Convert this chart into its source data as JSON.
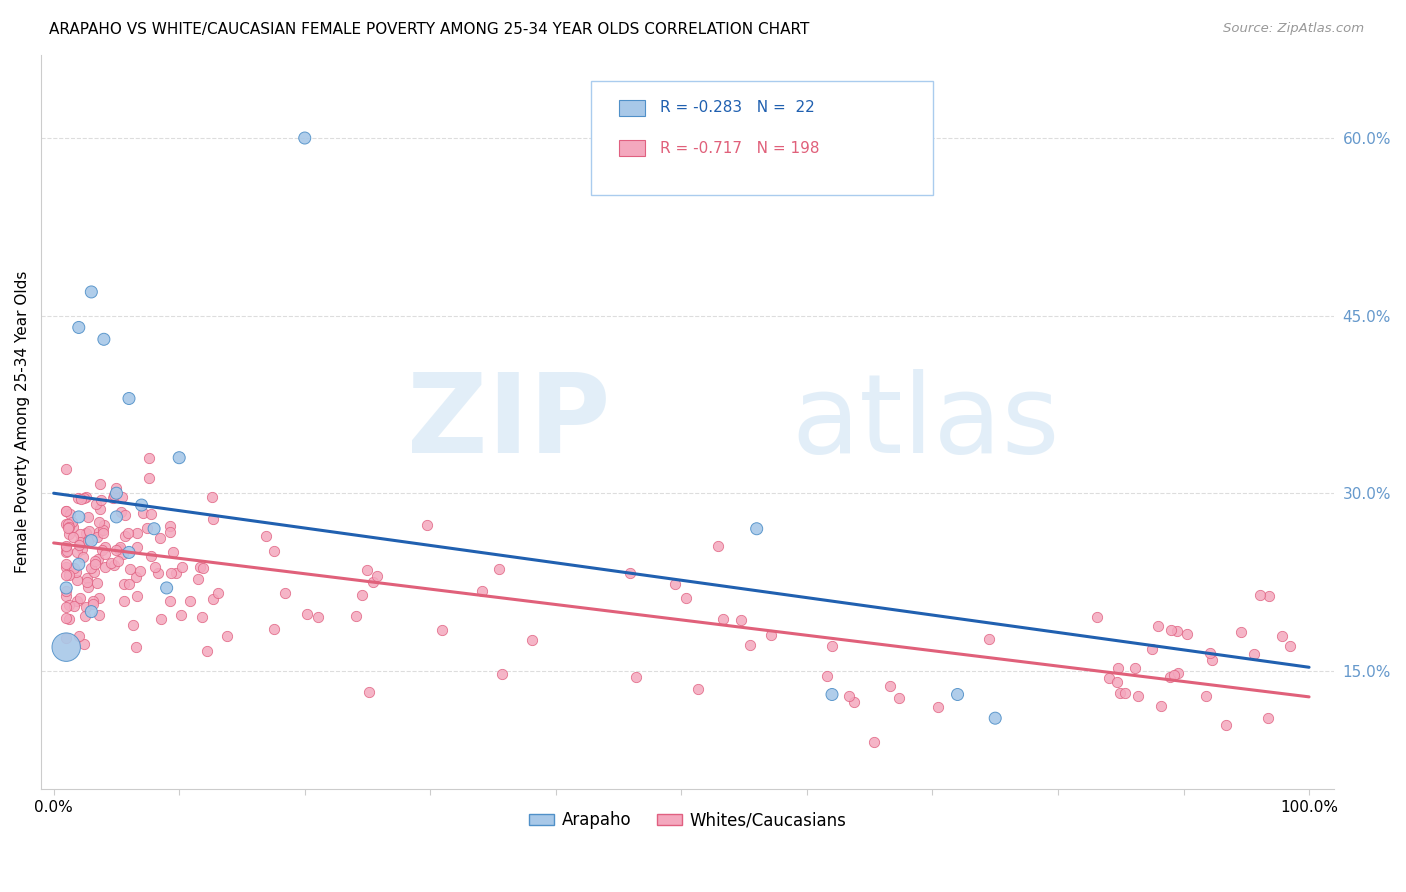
{
  "title": "ARAPAHO VS WHITE/CAUCASIAN FEMALE POVERTY AMONG 25-34 YEAR OLDS CORRELATION CHART",
  "source": "Source: ZipAtlas.com",
  "ylabel": "Female Poverty Among 25-34 Year Olds",
  "xlim": [
    -0.01,
    1.02
  ],
  "ylim": [
    0.05,
    0.67
  ],
  "xticks": [
    0.0,
    0.1,
    0.2,
    0.3,
    0.4,
    0.5,
    0.6,
    0.7,
    0.8,
    0.9,
    1.0
  ],
  "xticklabels": [
    "0.0%",
    "",
    "",
    "",
    "",
    "",
    "",
    "",
    "",
    "",
    "100.0%"
  ],
  "yticks_right": [
    0.15,
    0.3,
    0.45,
    0.6
  ],
  "yticklabels_right": [
    "15.0%",
    "30.0%",
    "45.0%",
    "60.0%"
  ],
  "arapaho_R": -0.283,
  "arapaho_N": 22,
  "white_R": -0.717,
  "white_N": 198,
  "arapaho_color": "#A8C8E8",
  "white_color": "#F4A8BE",
  "arapaho_edge_color": "#5090C8",
  "white_edge_color": "#E06080",
  "arapaho_line_color": "#2060B0",
  "white_line_color": "#E0607A",
  "background_color": "#FFFFFF",
  "grid_color": "#DDDDDD",
  "right_tick_color": "#6699CC",
  "blue_line_y0": 0.3,
  "blue_line_y1": 0.153,
  "pink_line_y0": 0.258,
  "pink_line_y1": 0.128
}
